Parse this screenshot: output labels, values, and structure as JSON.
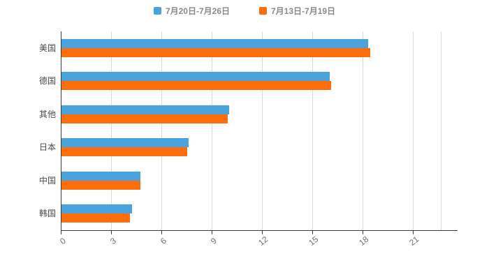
{
  "chart_data": {
    "type": "bar",
    "orientation": "horizontal",
    "title": "",
    "xlabel": "",
    "ylabel": "",
    "categories": [
      "美国",
      "德国",
      "其他",
      "日本",
      "中国",
      "韩国"
    ],
    "series": [
      {
        "name": "7月20日-7月26日",
        "color": "#4AA3DC",
        "values": [
          18.3,
          16.0,
          10.0,
          7.6,
          4.7,
          4.2
        ]
      },
      {
        "name": "7月13日-7月19日",
        "color": "#FC6E0C",
        "values": [
          18.4,
          16.1,
          9.9,
          7.5,
          4.7,
          4.1
        ]
      }
    ],
    "x_ticks": [
      0,
      3,
      6,
      9,
      12,
      15,
      18,
      21
    ],
    "xlim": [
      0,
      22.7
    ],
    "grid": true,
    "legend_position": "top",
    "axis_color": "#3a3a3a",
    "gridline_color": "#dadada",
    "tick_label_color": "#6f6f6f",
    "category_label_color": "#4a4a4a",
    "legend_text_color": "#898989"
  }
}
